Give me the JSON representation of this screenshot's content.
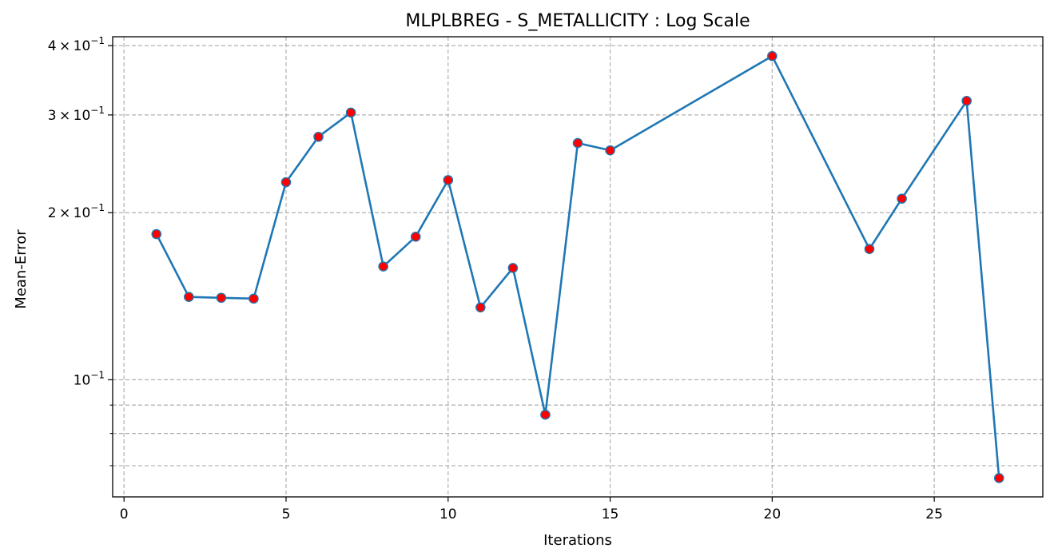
{
  "chart_data": {
    "type": "line",
    "title": "MLPLBREG - S_METALLICITY : Log Scale",
    "xlabel": "Iterations",
    "ylabel": "Mean-Error",
    "yscale": "log",
    "xlim": [
      -0.35,
      28.35
    ],
    "ylim": [
      0.0615,
      0.415
    ],
    "grid": true,
    "x_ticks": [
      {
        "value": 0,
        "label": "0"
      },
      {
        "value": 5,
        "label": "5"
      },
      {
        "value": 10,
        "label": "10"
      },
      {
        "value": 15,
        "label": "15"
      },
      {
        "value": 20,
        "label": "20"
      },
      {
        "value": 25,
        "label": "25"
      }
    ],
    "y_major_ticks": [
      {
        "value": 0.1,
        "base": "10",
        "exp": "−1"
      },
      {
        "value": 0.2,
        "coef": "2",
        "base": "10",
        "exp": "−1"
      },
      {
        "value": 0.3,
        "coef": "3",
        "base": "10",
        "exp": "−1"
      },
      {
        "value": 0.4,
        "coef": "4",
        "base": "10",
        "exp": "−1"
      }
    ],
    "y_minor_ticks": [
      0.07,
      0.08,
      0.09
    ],
    "series": [
      {
        "line_color": "#1f77b4",
        "marker_color": "#ff0000",
        "marker_edge_color": "#1f77b4",
        "x": [
          1,
          2,
          3,
          4,
          5,
          6,
          7,
          8,
          9,
          10,
          11,
          12,
          13,
          14,
          15,
          20,
          23,
          24,
          26,
          27
        ],
        "y": [
          0.183,
          0.141,
          0.1405,
          0.14,
          0.227,
          0.274,
          0.303,
          0.16,
          0.181,
          0.229,
          0.135,
          0.159,
          0.0865,
          0.267,
          0.259,
          0.383,
          0.172,
          0.212,
          0.318,
          0.0665
        ]
      }
    ]
  }
}
